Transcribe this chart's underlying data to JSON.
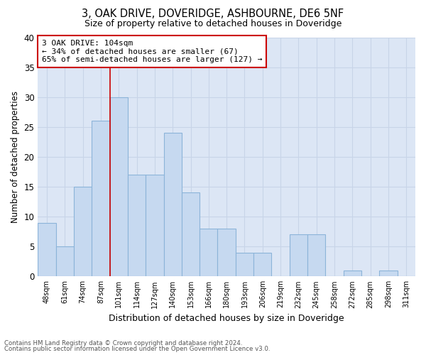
{
  "title1": "3, OAK DRIVE, DOVERIDGE, ASHBOURNE, DE6 5NF",
  "title2": "Size of property relative to detached houses in Doveridge",
  "xlabel": "Distribution of detached houses by size in Doveridge",
  "ylabel": "Number of detached properties",
  "categories": [
    "48sqm",
    "61sqm",
    "74sqm",
    "87sqm",
    "101sqm",
    "114sqm",
    "127sqm",
    "140sqm",
    "153sqm",
    "166sqm",
    "180sqm",
    "193sqm",
    "206sqm",
    "219sqm",
    "232sqm",
    "245sqm",
    "258sqm",
    "272sqm",
    "285sqm",
    "298sqm",
    "311sqm"
  ],
  "values": [
    9,
    5,
    15,
    26,
    30,
    17,
    17,
    24,
    14,
    8,
    8,
    4,
    4,
    0,
    7,
    7,
    0,
    1,
    0,
    1,
    0
  ],
  "bar_color": "#c6d9f0",
  "bar_edge_color": "#8cb4d9",
  "annotation_text": "3 OAK DRIVE: 104sqm\n← 34% of detached houses are smaller (67)\n65% of semi-detached houses are larger (127) →",
  "annotation_box_color": "#ffffff",
  "annotation_box_edge": "#cc0000",
  "highlight_line_color": "#cc0000",
  "grid_color": "#c8d4e8",
  "background_color": "#dce6f5",
  "ylim": [
    0,
    40
  ],
  "yticks": [
    0,
    5,
    10,
    15,
    20,
    25,
    30,
    35,
    40
  ],
  "footer1": "Contains HM Land Registry data © Crown copyright and database right 2024.",
  "footer2": "Contains public sector information licensed under the Open Government Licence v3.0."
}
